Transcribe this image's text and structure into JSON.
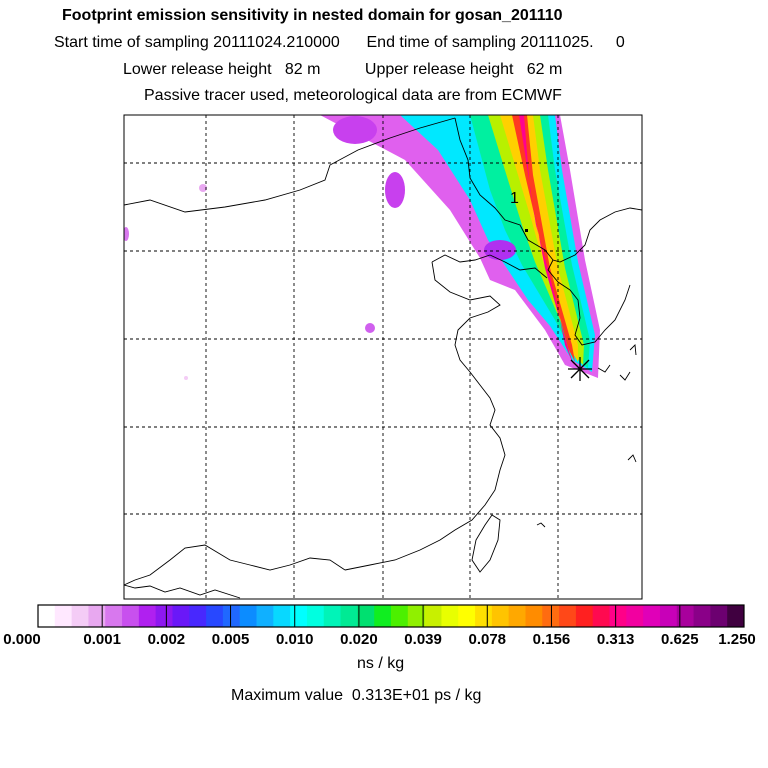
{
  "header": {
    "title": "Footprint emission sensitivity in nested domain for gosan_201110",
    "line1": "Start time of sampling 20111024.210000      End time of sampling 20111025.     0",
    "line2": "Lower release height   82 m          Upper release height   62 m",
    "line3": "Passive tracer used, meteorological data are from ECMWF"
  },
  "map": {
    "release_label": "1",
    "receptor_marker": "star-burst",
    "gridlines": "dashed"
  },
  "legend": {
    "ticks": [
      "0.000",
      "0.001",
      "0.002",
      "0.005",
      "0.010",
      "0.020",
      "0.039",
      "0.078",
      "0.156",
      "0.313",
      "0.625",
      "1.250"
    ],
    "colors": [
      "#ffffff",
      "#ffe8ff",
      "#f4ccf6",
      "#e8a8f0",
      "#d878ee",
      "#c850ee",
      "#b020f0",
      "#8e18f0",
      "#6a18f8",
      "#4828fe",
      "#2848ff",
      "#2068ff",
      "#0c8cff",
      "#10b0ff",
      "#08d8ff",
      "#00ffff",
      "#00ffe0",
      "#00f4b8",
      "#00ea94",
      "#00e070",
      "#10ee20",
      "#4cf000",
      "#90f000",
      "#c8f000",
      "#e8ff00",
      "#ffff00",
      "#ffe000",
      "#ffc400",
      "#ffa800",
      "#ff8c00",
      "#ff6c10",
      "#ff4818",
      "#ff2020",
      "#ff0a50",
      "#ff0088",
      "#f200a0",
      "#e000b8",
      "#c800b8",
      "#a8009c",
      "#8a0088",
      "#6c0070",
      "#400040"
    ],
    "units": "ns / kg",
    "max_value": "Maximum value  0.313E+01 ps / kg"
  }
}
